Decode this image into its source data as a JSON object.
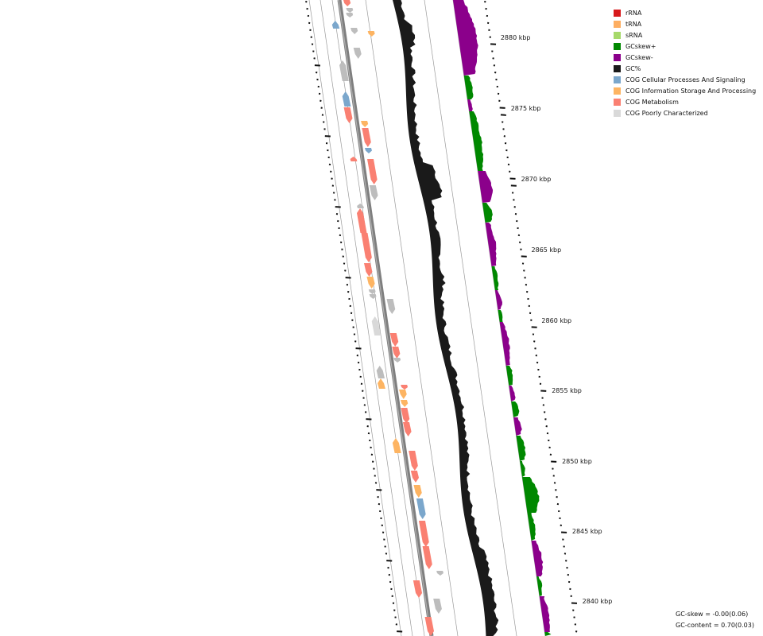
{
  "legend": [
    {
      "label": "rRNA",
      "color": "#d7191c"
    },
    {
      "label": "tRNA",
      "color": "#fdae61"
    },
    {
      "label": "sRNA",
      "color": "#a6d96a"
    },
    {
      "label": "GCskew+",
      "color": "#008800"
    },
    {
      "label": "GCskew-",
      "color": "#8b008b"
    },
    {
      "label": "GC%",
      "color": "#1a1a1a"
    },
    {
      "label": "COG Cellular Processes And Signaling",
      "color": "#7ba7cc"
    },
    {
      "label": "COG Information Storage And Processing",
      "color": "#fdb462"
    },
    {
      "label": "COG Metabolism",
      "color": "#fa8072"
    },
    {
      "label": "COG Poorly Characterized",
      "color": "#d9d9d9"
    }
  ],
  "stats": {
    "gc_skew": "GC-skew = -0.00(0.06)",
    "gc_content": "GC-content = 0.70(0.03)"
  },
  "ruler": {
    "ticks": [
      "2880 kbp",
      "2875 kbp",
      "2870 kbp",
      "2865 kbp",
      "2860 kbp",
      "2855 kbp",
      "2850 kbp",
      "2845 kbp",
      "2840 kbp"
    ]
  },
  "colors": {
    "backbone": "#7f7f7f",
    "track_line": "#9a9a9a",
    "gc_content": "#1a1a1a",
    "gc_skew_pos": "#008800",
    "gc_skew_neg": "#8b008b",
    "cog_cell": "#7ba7cc",
    "cog_info": "#fdb462",
    "cog_meta": "#fa8072",
    "cog_poor": "#bdbdbd",
    "cog_poor_light": "#d9d9d9"
  }
}
